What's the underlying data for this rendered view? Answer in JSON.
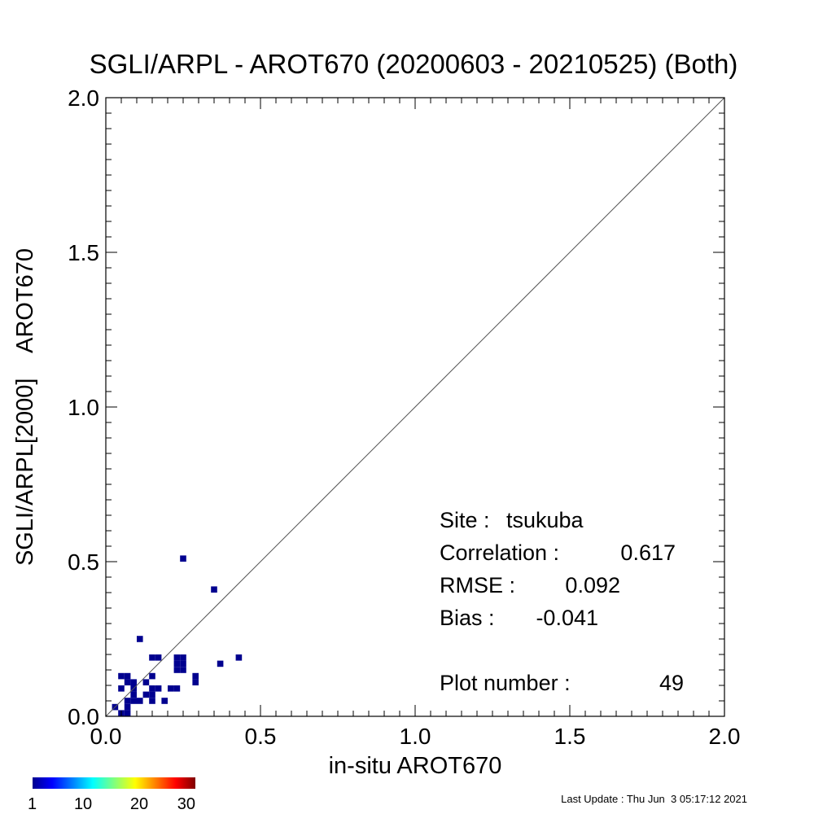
{
  "chart_data": {
    "type": "heatmap",
    "title": "SGLI/ARPL - AROT670 (20200603 - 20210525) (Both)",
    "xlabel": "in-situ AROT670",
    "ylabel": "SGLI/ARPL[2000]    AROT670",
    "xlim": [
      0.0,
      2.0
    ],
    "ylim": [
      0.0,
      2.0
    ],
    "x_tick_labels": [
      "0.0",
      "0.5",
      "1.0",
      "1.5",
      "2.0"
    ],
    "y_tick_labels": [
      "0.0",
      "0.5",
      "1.0",
      "1.5",
      "2.0"
    ],
    "x_ticks": [
      0.0,
      0.5,
      1.0,
      1.5,
      2.0
    ],
    "y_ticks": [
      0.0,
      0.5,
      1.0,
      1.5,
      2.0
    ],
    "one_to_one_line": true,
    "grid": false,
    "bin_size": 0.02,
    "cell_color": "#00008f",
    "cells": [
      {
        "x": 0.25,
        "y": 0.51
      },
      {
        "x": 0.35,
        "y": 0.41
      },
      {
        "x": 0.11,
        "y": 0.25
      },
      {
        "x": 0.15,
        "y": 0.19
      },
      {
        "x": 0.17,
        "y": 0.19
      },
      {
        "x": 0.23,
        "y": 0.19
      },
      {
        "x": 0.25,
        "y": 0.19
      },
      {
        "x": 0.43,
        "y": 0.19
      },
      {
        "x": 0.23,
        "y": 0.17
      },
      {
        "x": 0.25,
        "y": 0.17
      },
      {
        "x": 0.37,
        "y": 0.17
      },
      {
        "x": 0.23,
        "y": 0.15
      },
      {
        "x": 0.25,
        "y": 0.15
      },
      {
        "x": 0.05,
        "y": 0.13
      },
      {
        "x": 0.07,
        "y": 0.13
      },
      {
        "x": 0.15,
        "y": 0.13
      },
      {
        "x": 0.29,
        "y": 0.13
      },
      {
        "x": 0.07,
        "y": 0.11
      },
      {
        "x": 0.09,
        "y": 0.11
      },
      {
        "x": 0.13,
        "y": 0.11
      },
      {
        "x": 0.29,
        "y": 0.11
      },
      {
        "x": 0.05,
        "y": 0.09
      },
      {
        "x": 0.09,
        "y": 0.09
      },
      {
        "x": 0.15,
        "y": 0.09
      },
      {
        "x": 0.17,
        "y": 0.09
      },
      {
        "x": 0.21,
        "y": 0.09
      },
      {
        "x": 0.23,
        "y": 0.09
      },
      {
        "x": 0.09,
        "y": 0.07
      },
      {
        "x": 0.13,
        "y": 0.07
      },
      {
        "x": 0.15,
        "y": 0.07
      },
      {
        "x": 0.07,
        "y": 0.05
      },
      {
        "x": 0.09,
        "y": 0.05
      },
      {
        "x": 0.11,
        "y": 0.05
      },
      {
        "x": 0.15,
        "y": 0.05
      },
      {
        "x": 0.19,
        "y": 0.05
      },
      {
        "x": 0.03,
        "y": 0.03
      },
      {
        "x": 0.07,
        "y": 0.03
      },
      {
        "x": 0.05,
        "y": 0.01
      },
      {
        "x": 0.07,
        "y": 0.01
      }
    ],
    "stats": {
      "site_label": "Site :",
      "site_value": "tsukuba",
      "correlation_label": "Correlation :",
      "correlation_value": "0.617",
      "rmse_label": "RMSE :",
      "rmse_value": "0.092",
      "bias_label": "Bias :",
      "bias_value": "-0.041",
      "plot_number_label": "Plot number :",
      "plot_number_value": "49"
    },
    "colorbar": {
      "min": 1,
      "max": 30,
      "tick_labels": [
        "1",
        "10",
        "20",
        "30"
      ],
      "tick_values": [
        1,
        10,
        20,
        30
      ],
      "colormap": "jet"
    }
  },
  "footer": {
    "last_update": "Last Update : Thu Jun  3 05:17:12 2021"
  }
}
